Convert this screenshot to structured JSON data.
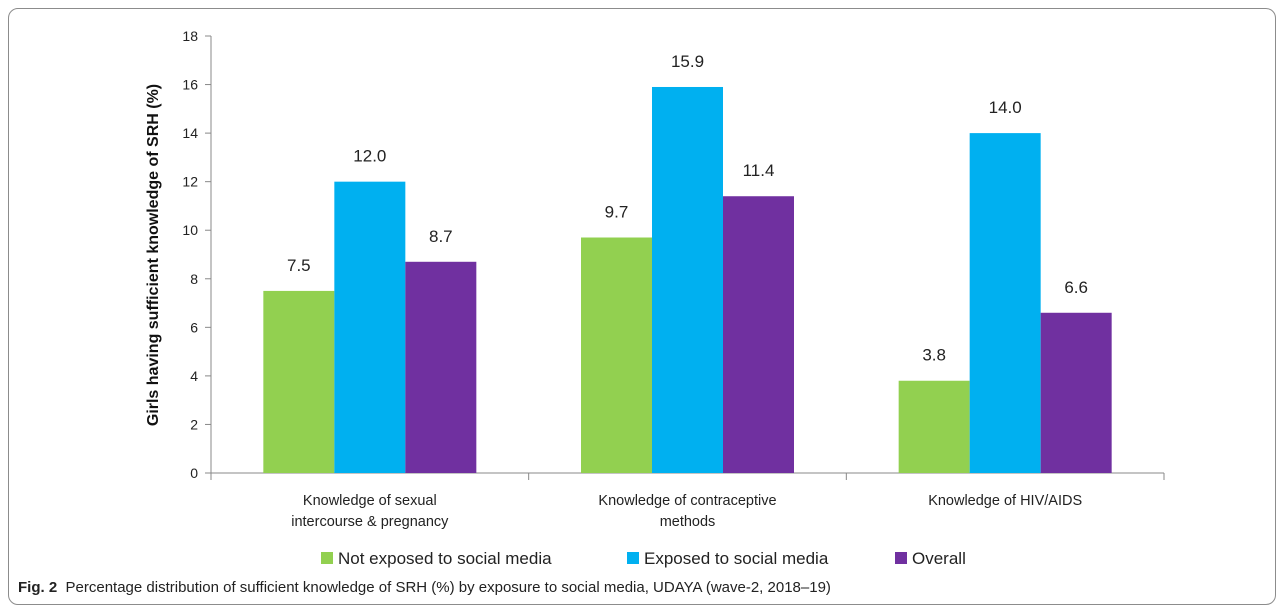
{
  "caption": {
    "label": "Fig. 2",
    "text": "Percentage distribution of sufficient knowledge of SRH (%) by exposure to social media, UDAYA (wave-2, 2018–19)"
  },
  "chart_data": {
    "type": "bar",
    "ylabel": "Girls having sufficient knowledge of SRH (%)",
    "xlabel": "",
    "ylim": [
      0,
      18
    ],
    "yticks": [
      "0",
      "2",
      "4",
      "6",
      "8",
      "10",
      "12",
      "14",
      "16",
      "18"
    ],
    "grid": false,
    "legend_position": "bottom",
    "categories": [
      [
        "Knowledge of sexual",
        "intercourse & pregnancy"
      ],
      [
        "Knowledge of contraceptive",
        "methods"
      ],
      [
        "Knowledge of HIV/AIDS"
      ]
    ],
    "series": [
      {
        "name": "Not exposed to social media",
        "color": "#92d050",
        "values": [
          7.5,
          9.7,
          3.8
        ],
        "labels": [
          "7.5",
          "9.7",
          "3.8"
        ]
      },
      {
        "name": "Exposed to social media",
        "color": "#00b0f0",
        "values": [
          12.0,
          15.9,
          14.0
        ],
        "labels": [
          "12.0",
          "15.9",
          "14.0"
        ]
      },
      {
        "name": "Overall",
        "color": "#7030a0",
        "values": [
          8.7,
          11.4,
          6.6
        ],
        "labels": [
          "8.7",
          "11.4",
          "6.6"
        ]
      }
    ]
  }
}
